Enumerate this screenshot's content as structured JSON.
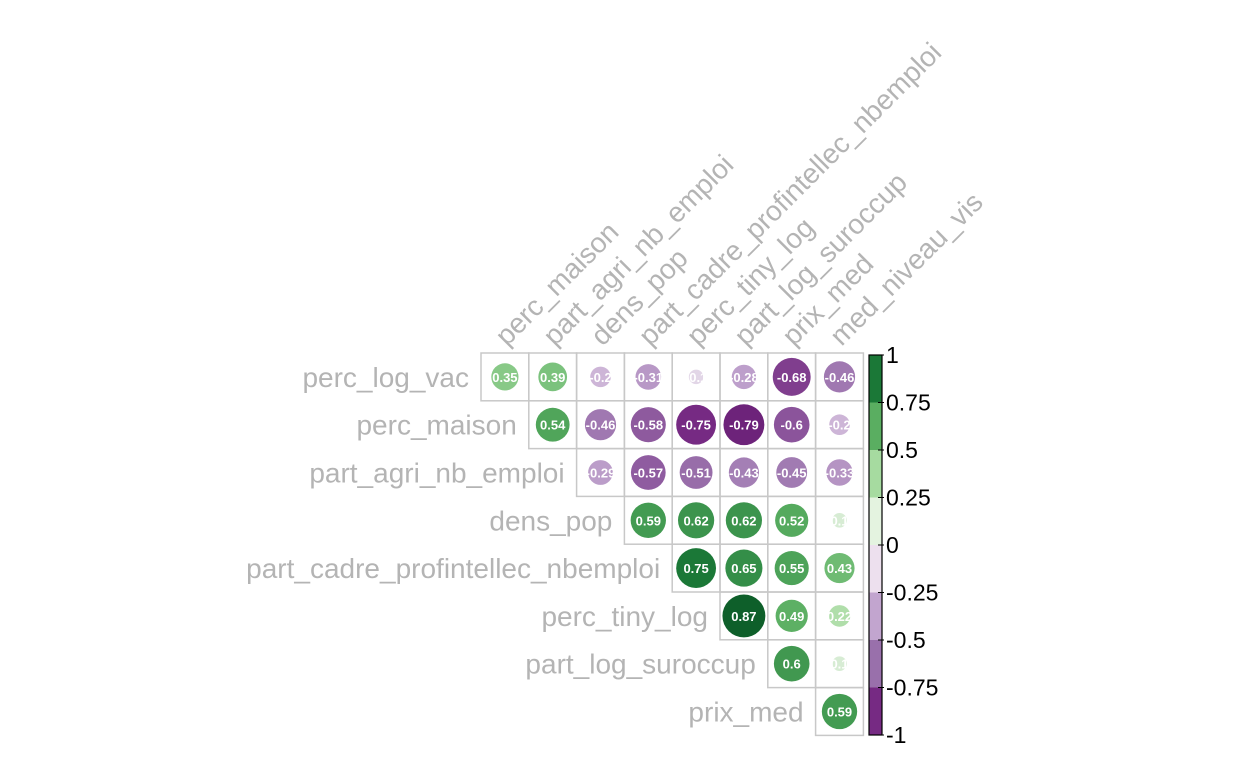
{
  "chart_data": {
    "type": "heatmap",
    "style": "corrplot-upper-circle",
    "row_labels": [
      "perc_log_vac",
      "perc_maison",
      "part_agri_nb_emploi",
      "dens_pop",
      "part_cadre_profintellec_nbemploi",
      "perc_tiny_log",
      "part_log_suroccup",
      "prix_med"
    ],
    "col_labels": [
      "perc_maison",
      "part_agri_nb_emploi",
      "dens_pop",
      "part_cadre_profintellec_nbemploi",
      "perc_tiny_log",
      "part_log_suroccup",
      "prix_med",
      "med_niveau_vis"
    ],
    "cells": [
      [
        {
          "v": 0.35,
          "l": "0.35"
        },
        {
          "v": 0.39,
          "l": "0.39"
        },
        {
          "v": -0.2,
          "l": "-0.2"
        },
        {
          "v": -0.31,
          "l": "-0.31"
        },
        {
          "v": -0.1,
          "l": "-0.1"
        },
        {
          "v": -0.28,
          "l": "-0.28"
        },
        {
          "v": -0.68,
          "l": "-0.68"
        },
        {
          "v": -0.46,
          "l": "-0.46"
        }
      ],
      [
        null,
        {
          "v": 0.54,
          "l": "0.54"
        },
        {
          "v": -0.46,
          "l": "-0.46"
        },
        {
          "v": -0.58,
          "l": "-0.58"
        },
        {
          "v": -0.75,
          "l": "-0.75"
        },
        {
          "v": -0.79,
          "l": "-0.79"
        },
        {
          "v": -0.6,
          "l": "-0.6"
        },
        {
          "v": -0.2,
          "l": "-0.2"
        }
      ],
      [
        null,
        null,
        {
          "v": -0.29,
          "l": "-0.29"
        },
        {
          "v": -0.57,
          "l": "-0.57"
        },
        {
          "v": -0.51,
          "l": "-0.51"
        },
        {
          "v": -0.43,
          "l": "-0.43"
        },
        {
          "v": -0.45,
          "l": "-0.45"
        },
        {
          "v": -0.33,
          "l": "-0.33"
        }
      ],
      [
        null,
        null,
        null,
        {
          "v": 0.59,
          "l": "0.59"
        },
        {
          "v": 0.62,
          "l": "0.62"
        },
        {
          "v": 0.62,
          "l": "0.62"
        },
        {
          "v": 0.52,
          "l": "0.52"
        },
        {
          "v": 0.1,
          "l": "0.1"
        }
      ],
      [
        null,
        null,
        null,
        null,
        {
          "v": 0.75,
          "l": "0.75"
        },
        {
          "v": 0.65,
          "l": "0.65"
        },
        {
          "v": 0.55,
          "l": "0.55"
        },
        {
          "v": 0.43,
          "l": "0.43"
        }
      ],
      [
        null,
        null,
        null,
        null,
        null,
        {
          "v": 0.87,
          "l": "0.87"
        },
        {
          "v": 0.49,
          "l": "0.49"
        },
        {
          "v": 0.22,
          "l": "0.22"
        }
      ],
      [
        null,
        null,
        null,
        null,
        null,
        null,
        {
          "v": 0.6,
          "l": "0.6"
        },
        {
          "v": 0.1,
          "l": "0.1"
        }
      ],
      [
        null,
        null,
        null,
        null,
        null,
        null,
        null,
        {
          "v": 0.59,
          "l": "0.59"
        }
      ]
    ],
    "legend": {
      "ticks": [
        "1",
        "0.75",
        "0.5",
        "0.25",
        "0",
        "-0.25",
        "-0.5",
        "-0.75",
        "-1"
      ],
      "range": [
        -1,
        1
      ],
      "bands": [
        "#1b7837",
        "#5aae61",
        "#a6dba0",
        "#e4f3e0",
        "#ede0ee",
        "#c2a5cf",
        "#9970ab",
        "#762a83"
      ]
    },
    "colors": {
      "label_text": "#b4b4b4",
      "grid": "#c8c8c8",
      "cell_text": "#ffffff",
      "legend_text": "#000000"
    }
  }
}
